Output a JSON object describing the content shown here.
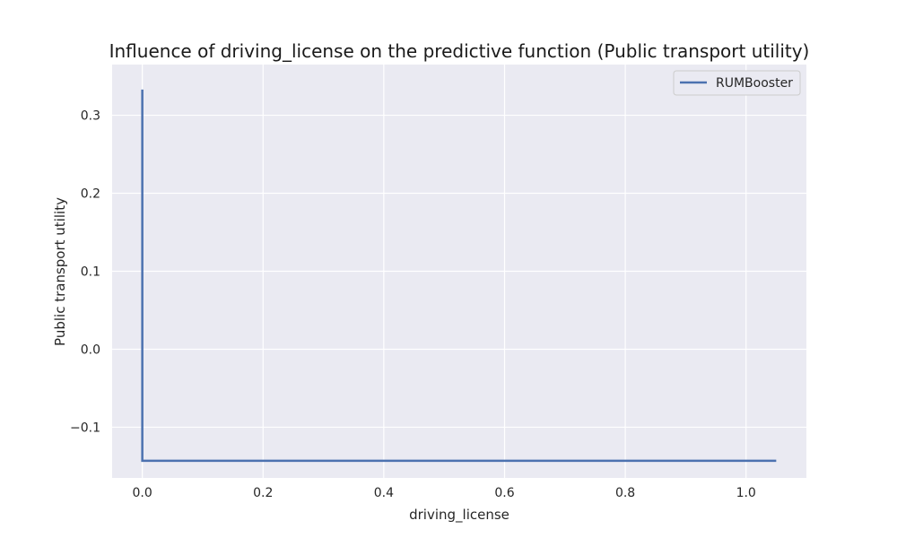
{
  "chart_data": {
    "type": "line",
    "title": "Influence of driving_license on the predictive function (Public transport utility)",
    "xlabel": "driving_license",
    "ylabel": "Public transport utility",
    "xlim": [
      -0.05,
      1.1
    ],
    "ylim": [
      -0.165,
      0.365
    ],
    "xticks": [
      0.0,
      0.2,
      0.4,
      0.6,
      0.8,
      1.0
    ],
    "xtick_labels": [
      "0.0",
      "0.2",
      "0.4",
      "0.6",
      "0.8",
      "1.0"
    ],
    "yticks": [
      -0.1,
      0.0,
      0.1,
      0.2,
      0.3
    ],
    "ytick_labels": [
      "−0.1",
      "0.0",
      "0.1",
      "0.2",
      "0.3"
    ],
    "grid": true,
    "legend_position": "top-right",
    "series": [
      {
        "name": "RUMBooster",
        "color": "#4c72b0",
        "x": [
          0.0,
          0.0,
          1.05
        ],
        "y": [
          0.333,
          -0.143,
          -0.143
        ]
      }
    ]
  },
  "colors": {
    "plot_background": "#eaeaf2",
    "grid": "#ffffff"
  }
}
